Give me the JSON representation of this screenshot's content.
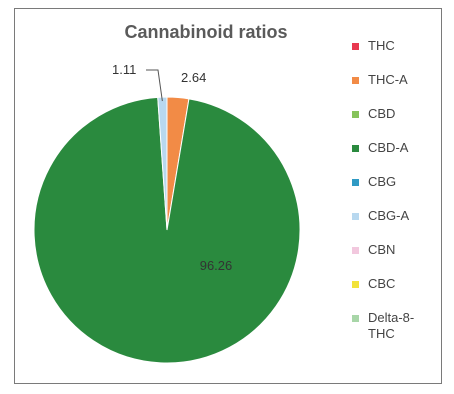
{
  "chart_data": {
    "type": "pie",
    "title": "Cannabinoid ratios",
    "legend_position": "right",
    "series": [
      {
        "name": "Cannabinoid ratios",
        "values": [
          {
            "label": "THC",
            "value": 0,
            "color": "#e8384f"
          },
          {
            "label": "THC-A",
            "value": 2.64,
            "color": "#f28b46"
          },
          {
            "label": "CBD",
            "value": 0,
            "color": "#86c35a"
          },
          {
            "label": "CBD-A",
            "value": 96.26,
            "color": "#2a8a3e"
          },
          {
            "label": "CBG",
            "value": 0,
            "color": "#2f9ac4"
          },
          {
            "label": "CBG-A",
            "value": 1.11,
            "color": "#b8d8ef"
          },
          {
            "label": "CBN",
            "value": 0,
            "color": "#f2c8de"
          },
          {
            "label": "CBC",
            "value": 0,
            "color": "#f2e33a"
          },
          {
            "label": "Delta-8-THC",
            "value": 0,
            "color": "#a8d6a8"
          }
        ]
      }
    ],
    "data_labels": {
      "THC-A": "2.64",
      "CBD-A": "96.26",
      "CBG-A": "1.11"
    }
  }
}
